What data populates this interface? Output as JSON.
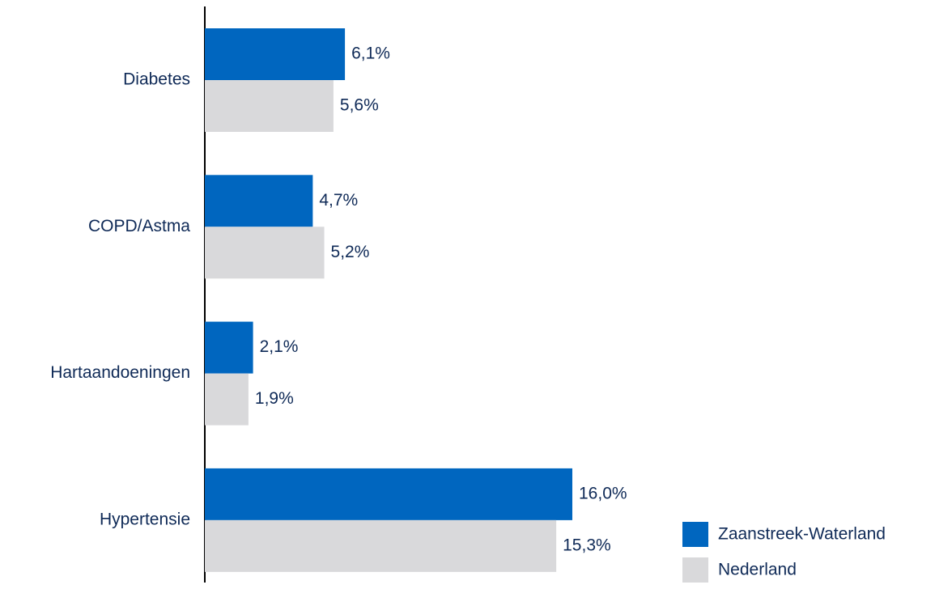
{
  "chart_data": {
    "type": "bar",
    "orientation": "horizontal",
    "categories": [
      "Diabetes",
      "COPD/Astma",
      "Hartaandoeningen",
      "Hypertensie"
    ],
    "series": [
      {
        "name": "Zaanstreek-Waterland",
        "color": "#0066bf",
        "values": [
          6.1,
          4.7,
          2.1,
          16.0
        ],
        "value_labels": [
          "6,1%",
          "4,7%",
          "2,1%",
          "16,0%"
        ]
      },
      {
        "name": "Nederland",
        "color": "#d9d9db",
        "values": [
          5.6,
          5.2,
          1.9,
          15.3
        ],
        "value_labels": [
          "5,6%",
          "5,2%",
          "1,9%",
          "15,3%"
        ]
      }
    ],
    "legend": "lower right"
  }
}
